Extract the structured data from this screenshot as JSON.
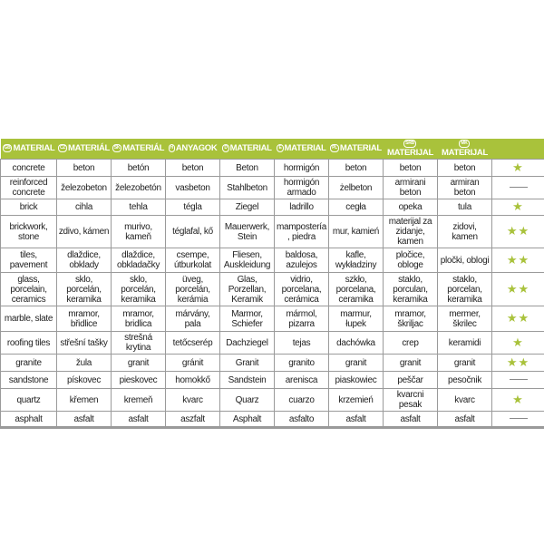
{
  "accent_color": "#a9c23b",
  "headers": [
    {
      "code": "GB",
      "label": "MATERIAL"
    },
    {
      "code": "CZ",
      "label": "MATERIÁL"
    },
    {
      "code": "SK",
      "label": "MATERIÁL"
    },
    {
      "code": "H",
      "label": "ANYAGOK"
    },
    {
      "code": "D",
      "label": "MATERIAL"
    },
    {
      "code": "E",
      "label": "MATERIAL"
    },
    {
      "code": "PL",
      "label": "MATERIAL"
    },
    {
      "code": "SRB",
      "label": "MATERIJAL"
    },
    {
      "code": "MK",
      "label": "MATERIJAL"
    }
  ],
  "rows": [
    {
      "cells": [
        "concrete",
        "beton",
        "betón",
        "beton",
        "Beton",
        "hormigón",
        "beton",
        "beton",
        "beton"
      ],
      "rating": 1
    },
    {
      "cells": [
        "reinforced concrete",
        "železobeton",
        "železobetón",
        "vasbeton",
        "Stahlbeton",
        "hormigón armado",
        "żelbeton",
        "armirani beton",
        "armiran beton"
      ],
      "rating": 0
    },
    {
      "cells": [
        "brick",
        "cihla",
        "tehla",
        "tégla",
        "Ziegel",
        "ladrillo",
        "cegła",
        "opeka",
        "tula"
      ],
      "rating": 1
    },
    {
      "cells": [
        "brickwork, stone",
        "zdivo, kámen",
        "murivo, kameň",
        "téglafal, kő",
        "Mauerwerk, Stein",
        "mampostería, piedra",
        "mur, kamień",
        "materijal za zidanje, kamen",
        "zidovi, kamen"
      ],
      "rating": 2
    },
    {
      "cells": [
        "tiles, pavement",
        "dlaždice, obklady",
        "dlaždice, obkladačky",
        "csempe, útburkolat",
        "Fliesen, Auskleidung",
        "baldosa, azulejos",
        "kafle, wykładziny",
        "pločice, obloge",
        "pločki, oblogi"
      ],
      "rating": 2
    },
    {
      "cells": [
        "glass, porcelain, ceramics",
        "sklo, porcelán, keramika",
        "sklo, porcelán, keramika",
        "üveg, porcelán, kerámia",
        "Glas, Porzellan, Keramik",
        "vidrio, porcelana, cerámica",
        "szkło, porcelana, ceramika",
        "staklo, porculan, keramika",
        "staklo, porcelan, keramika"
      ],
      "rating": 2
    },
    {
      "cells": [
        "marble, slate",
        "mramor, břidlice",
        "mramor, bridlica",
        "márvány, pala",
        "Marmor, Schiefer",
        "mármol, pizarra",
        "marmur, łupek",
        "mramor, škriljac",
        "mermer, škrilec"
      ],
      "rating": 2
    },
    {
      "cells": [
        "roofing tiles",
        "střešní tašky",
        "strešná krytina",
        "tetőcserép",
        "Dachziegel",
        "tejas",
        "dachówka",
        "crep",
        "keramidi"
      ],
      "rating": 1
    },
    {
      "cells": [
        "granite",
        "žula",
        "granit",
        "gránit",
        "Granit",
        "granito",
        "granit",
        "granit",
        "granit"
      ],
      "rating": 2
    },
    {
      "cells": [
        "sandstone",
        "pískovec",
        "pieskovec",
        "homokkő",
        "Sandstein",
        "arenisca",
        "piaskowiec",
        "peščar",
        "pesočnik"
      ],
      "rating": 0
    },
    {
      "cells": [
        "quartz",
        "křemen",
        "kremeň",
        "kvarc",
        "Quarz",
        "cuarzo",
        "krzemień",
        "kvarcni pesak",
        "kvarc"
      ],
      "rating": 1
    },
    {
      "cells": [
        "asphalt",
        "asfalt",
        "asfalt",
        "aszfalt",
        "Asphalt",
        "asfalto",
        "asfalt",
        "asfalt",
        "asfalt"
      ],
      "rating": 0
    }
  ]
}
